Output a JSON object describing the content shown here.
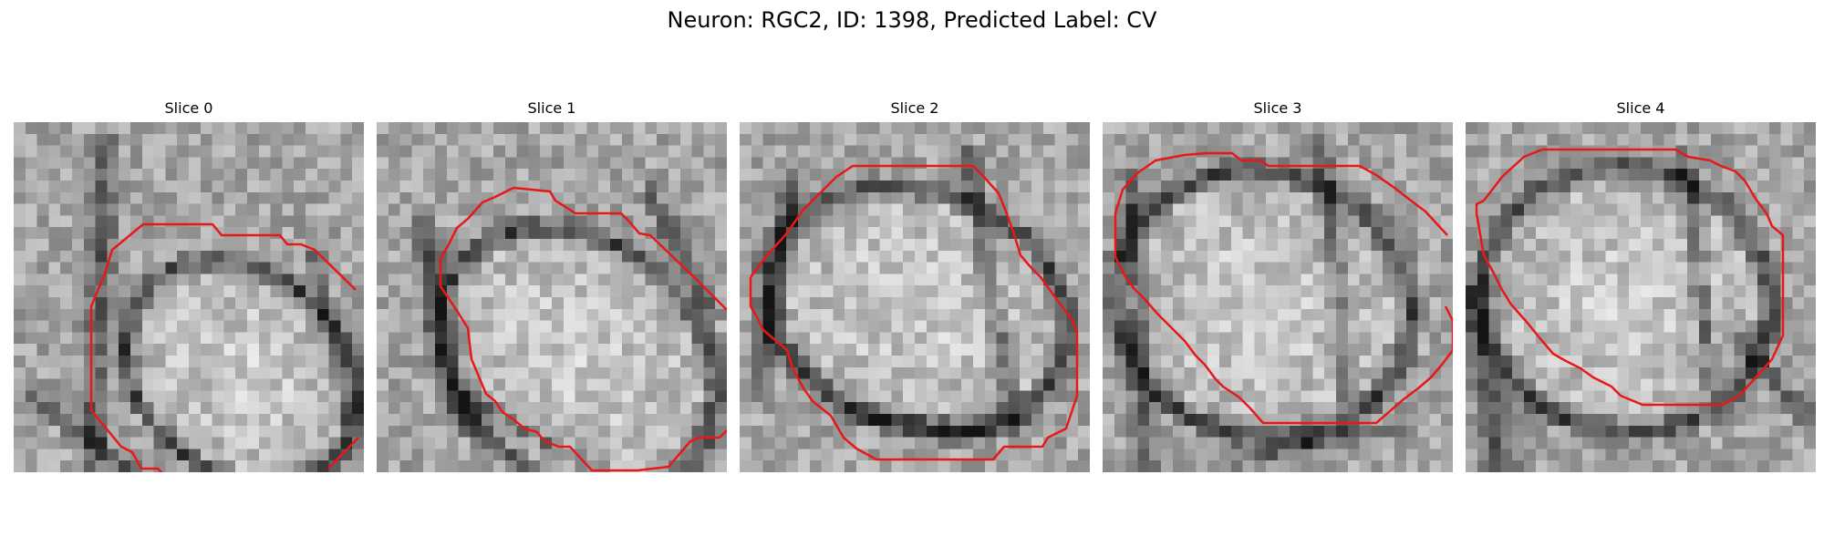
{
  "figure": {
    "title": "Neuron: RGC2, ID: 1398, Predicted Label: CV"
  },
  "contour_color": "#e81818",
  "slices": [
    {
      "title": "Slice 0"
    },
    {
      "title": "Slice 1"
    },
    {
      "title": "Slice 2"
    },
    {
      "title": "Slice 3"
    },
    {
      "title": "Slice 4"
    }
  ]
}
